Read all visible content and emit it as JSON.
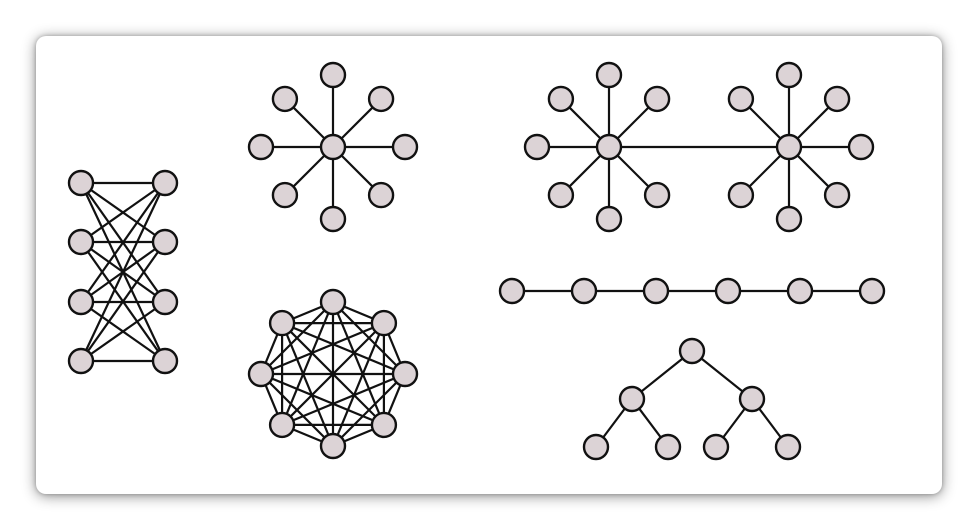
{
  "colors": {
    "node_fill": "#dcd3d6",
    "node_stroke": "#111111",
    "edge_stroke": "#111111",
    "background": "#ffffff"
  },
  "graphs": [
    {
      "id": "complete-bipartite",
      "kind": "complete bipartite",
      "left_nodes": 4,
      "right_nodes": 4
    },
    {
      "id": "star",
      "kind": "star",
      "center_nodes": 1,
      "leaf_nodes": 8
    },
    {
      "id": "complete-graph",
      "kind": "complete",
      "nodes": 8
    },
    {
      "id": "double-star",
      "kind": "two connected stars",
      "centers": 2,
      "leaves_per_center": 7
    },
    {
      "id": "path",
      "kind": "path",
      "nodes": 6
    },
    {
      "id": "binary-tree",
      "kind": "binary tree",
      "nodes": 7
    }
  ]
}
